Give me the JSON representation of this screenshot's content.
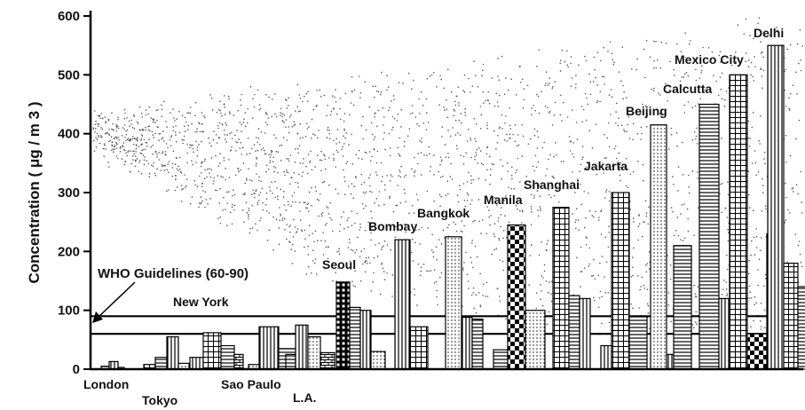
{
  "chart_data": {
    "type": "bar",
    "ylabel": "Concentration ( μg / m 3 )",
    "ylim": [
      0,
      600
    ],
    "yticks": [
      "0",
      "100",
      "200",
      "300",
      "400",
      "500",
      "600"
    ],
    "categories": [
      "London",
      "Tokyo",
      "New York",
      "Sao Paulo",
      "L.A.",
      "Seoul",
      "Bombay",
      "Bangkok",
      "Manila",
      "Shanghai",
      "Jakarta",
      "Beijing",
      "Calcutta",
      "Mexico City",
      "Delhi"
    ],
    "series": [
      {
        "values": [
          5,
          8,
          20,
          8,
          25,
          148,
          220,
          225,
          33,
          275,
          40,
          415,
          450,
          500,
          550
        ]
      },
      {
        "values": [
          13,
          20,
          62,
          72,
          75,
          105,
          72,
          88,
          245,
          125,
          300,
          25,
          120,
          60,
          180
        ]
      },
      {
        "values": [
          3,
          55,
          40,
          35,
          55,
          100,
          0,
          85,
          100,
          120,
          90,
          210,
          0,
          230,
          140
        ]
      },
      {
        "values": [
          0,
          10,
          25,
          0,
          28,
          30,
          0,
          0,
          0,
          0,
          0,
          0,
          0,
          0,
          0
        ]
      }
    ],
    "guideline": {
      "label": "WHO Guidelines (60-90)",
      "range": [
        60,
        90
      ]
    },
    "grid": false,
    "legend": "none"
  }
}
